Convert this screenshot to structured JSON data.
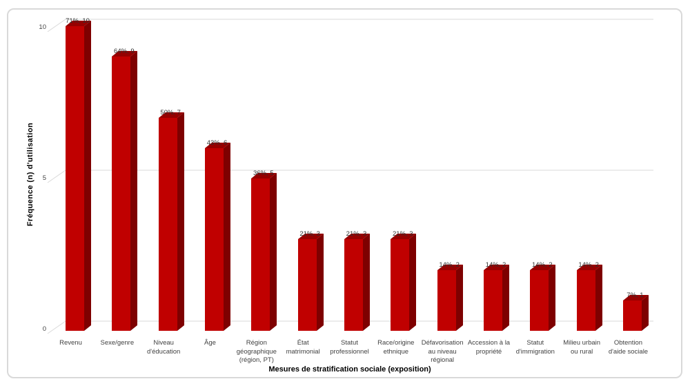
{
  "figure": {
    "background": "#FFFFFF",
    "border_color": "#D9D9D9"
  },
  "chart_data": {
    "type": "bar",
    "style": "3d-column",
    "title": "",
    "xlabel": "Mesures de stratification sociale (exposition)",
    "ylabel": "Fréquence (n) d'utilisation",
    "ylim": [
      0,
      10
    ],
    "yticks": [
      0,
      5,
      10
    ],
    "grid": true,
    "legend": "none",
    "categories": [
      "Revenu",
      "Sexe/genre",
      "Niveau d'éducation",
      "Âge",
      "Région géographique (région, PT)",
      "État matrimonial",
      "Statut professionnel",
      "Race/origine ethnique",
      "Défavorisation au niveau régional",
      "Accession à la propriété",
      "Statut d'immigration",
      "Milieu urbain ou rural",
      "Obtention d'aide sociale"
    ],
    "category_lines": [
      [
        "Revenu"
      ],
      [
        "Sexe/genre"
      ],
      [
        "Niveau",
        "d'éducation"
      ],
      [
        "Âge"
      ],
      [
        "Région",
        "géographique",
        "(région, PT)"
      ],
      [
        "État",
        "matrimonial"
      ],
      [
        "Statut",
        "professionnel"
      ],
      [
        "Race/origine",
        "ethnique"
      ],
      [
        "Défavorisation",
        "au niveau",
        "régional"
      ],
      [
        "Accession à la",
        "propriété"
      ],
      [
        "Statut",
        "d'immigration"
      ],
      [
        "Milieu urbain",
        "ou rural"
      ],
      [
        "Obtention",
        "d'aide sociale"
      ]
    ],
    "values": [
      10,
      9,
      7,
      6,
      5,
      3,
      3,
      3,
      2,
      2,
      2,
      2,
      1
    ],
    "percents": [
      71,
      64,
      50,
      43,
      36,
      21,
      21,
      21,
      14,
      14,
      14,
      14,
      7
    ],
    "data_labels": [
      "71%, 10",
      "64%, 9",
      "50%, 7",
      "43%, 6",
      "36%, 5",
      "21%, 3",
      "21%, 3",
      "21%, 3",
      "14%, 2",
      "14%, 2",
      "14%, 2",
      "14%, 2",
      "7%, 1"
    ],
    "colors": {
      "bar_front": "#C00000",
      "bar_side": "#7E0000",
      "bar_top": "#960000",
      "gridline": "#D9D9D9",
      "tick_text": "#444444",
      "category_text": "#404040",
      "data_label_text": "#303030",
      "axis_title_text": "#000000"
    }
  }
}
